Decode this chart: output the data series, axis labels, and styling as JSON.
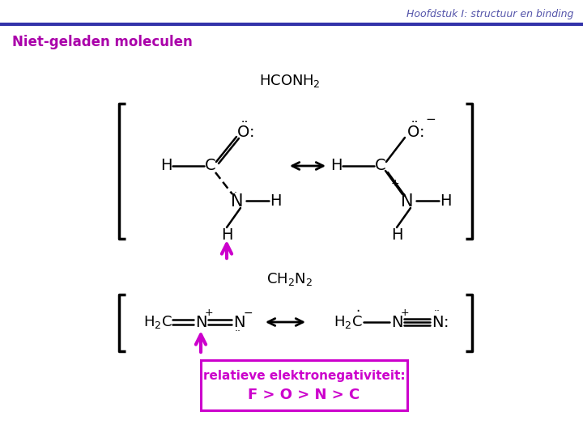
{
  "title": "Hoofdstuk I: structuur en binding",
  "subtitle": "Niet-geladen moleculen",
  "background_color": "#ffffff",
  "title_color": "#5555aa",
  "subtitle_color": "#aa00aa",
  "magenta": "#cc00cc",
  "black": "#000000",
  "top_bar_color": "#3333aa",
  "box_label1": "relatieve elektronegativiteit:",
  "box_label2": "F > O > N > C"
}
